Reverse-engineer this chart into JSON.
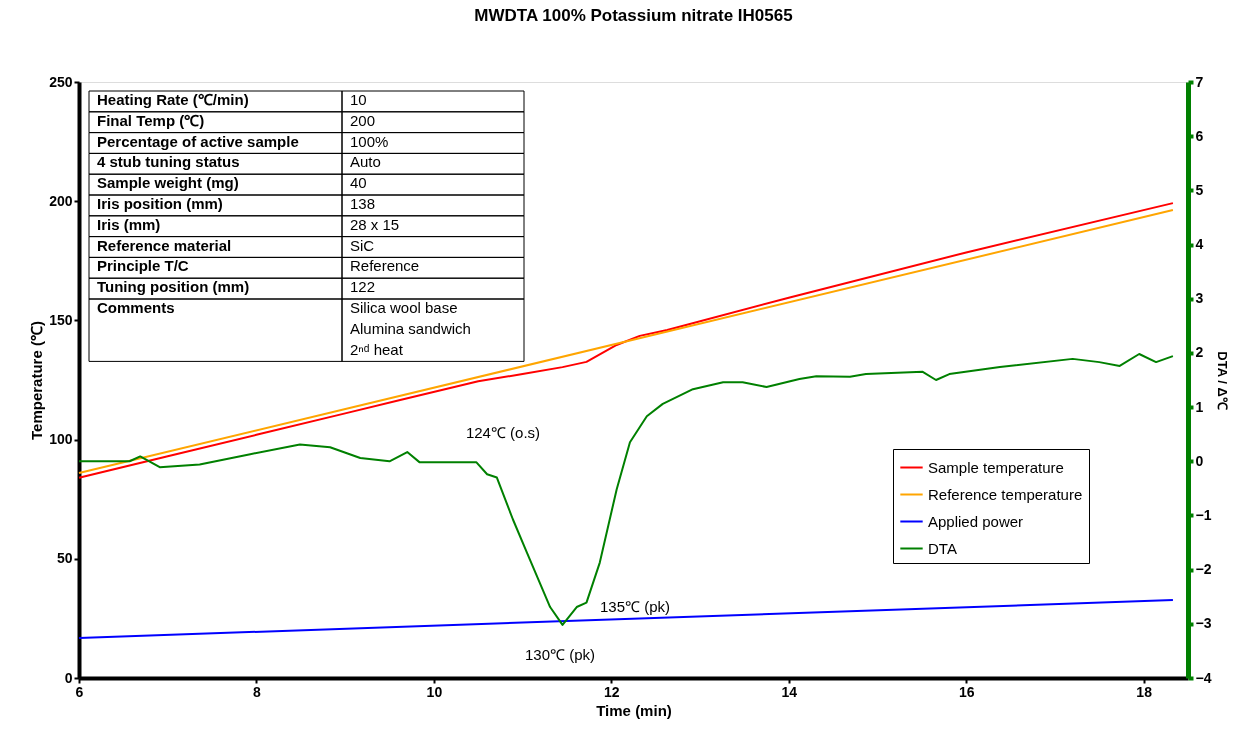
{
  "chart_data": {
    "type": "line",
    "title": "MWDTA 100% Potassium nitrate IH0565",
    "xlabel": "Time (min)",
    "ylabel": "Temperature (℃)",
    "y2label": "DTA / Δ℃",
    "x": [
      6,
      18.33
    ],
    "xlim": [
      6,
      18.5
    ],
    "xticks": [
      6,
      8,
      10,
      12,
      14,
      16,
      18
    ],
    "ylim": [
      0,
      250
    ],
    "yticks": [
      0,
      50,
      100,
      150,
      200,
      250
    ],
    "y2lim": [
      -4,
      7
    ],
    "y2ticks": [
      -4,
      -3,
      -2,
      -1,
      0,
      1,
      2,
      3,
      4,
      5,
      6,
      7
    ],
    "grid": false,
    "legend": "right",
    "marker": "none",
    "line_style": "solid",
    "series": [
      {
        "name": "Sample temperature",
        "color": "#ff0000",
        "x": [
          6,
          7,
          8,
          9,
          9.62,
          10.5,
          11.0,
          11.45,
          11.72,
          12.06,
          12.32,
          12.63,
          14,
          16,
          18.33
        ],
        "values": [
          84,
          93,
          102,
          111,
          116.6,
          124.5,
          127.5,
          130.4,
          132.6,
          139.7,
          143.5,
          146,
          159.5,
          178.5,
          199.2
        ]
      },
      {
        "name": "Reference temperature",
        "color": "#ffa500",
        "values": [
          86,
          196.3
        ]
      },
      {
        "name": "Applied power",
        "color": "#0000ff",
        "values": [
          16.8,
          32.7
        ]
      },
      {
        "name": "DTA",
        "color": "#008000",
        "axis": "y2",
        "x": [
          6,
          6.57,
          6.69,
          6.91,
          7.36,
          7.93,
          8.49,
          8.83,
          9.17,
          9.5,
          9.7,
          9.84,
          10.48,
          10.6,
          10.71,
          10.89,
          11.05,
          11.31,
          11.45,
          11.61,
          11.72,
          11.87,
          12.06,
          12.21,
          12.4,
          12.58,
          12.92,
          13.26,
          13.48,
          13.75,
          14.12,
          14.31,
          14.69,
          14.87,
          15.51,
          15.66,
          15.81,
          16.38,
          17.2,
          17.5,
          17.73,
          17.95,
          18.14,
          18.33
        ],
        "values": [
          0,
          0,
          0.09,
          -0.11,
          -0.06,
          0.13,
          0.31,
          0.26,
          0.06,
          0,
          0.17,
          -0.02,
          -0.02,
          -0.24,
          -0.3,
          -1.07,
          -1.69,
          -2.69,
          -3.02,
          -2.69,
          -2.61,
          -1.87,
          -0.52,
          0.35,
          0.83,
          1.06,
          1.33,
          1.46,
          1.46,
          1.37,
          1.52,
          1.57,
          1.56,
          1.61,
          1.65,
          1.5,
          1.61,
          1.74,
          1.89,
          1.83,
          1.76,
          1.98,
          1.83,
          1.94
        ]
      }
    ],
    "annotations": [
      "Heating Rate (℃/min)",
      "10",
      "Final Temp (℃)",
      "200",
      "Percentage of active sample",
      "100%",
      "4 stub tuning status",
      "Auto",
      "Sample weight (mg)",
      "40",
      "Iris position (mm)",
      "138",
      "Iris (mm)",
      "28 x 15",
      "Reference material",
      "SiC",
      "Principle T/C",
      "Reference",
      "Tuning position (mm)",
      "122",
      "Comments",
      "Silica wool base\nAlumina sandwich\n2ⁿᵈ heat",
      "124℃ (o.s)",
      "135℃ (pk)",
      "130℃ (pk)"
    ]
  }
}
